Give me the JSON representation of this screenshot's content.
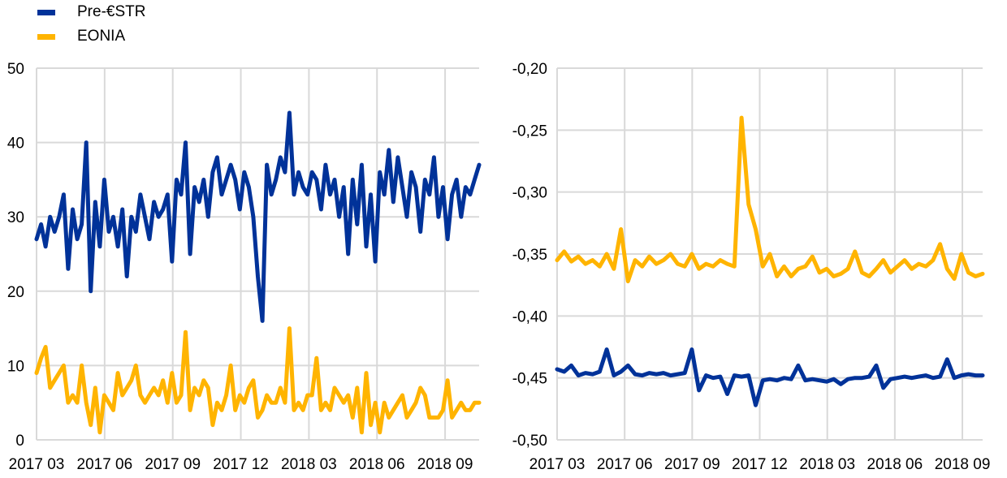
{
  "legend": [
    {
      "label": "Pre-€STR",
      "color": "#003299"
    },
    {
      "label": "EONIA",
      "color": "#FFB400"
    }
  ],
  "chart_data": [
    {
      "type": "line",
      "title": "",
      "xlabel": "",
      "ylabel": "",
      "x_unit": "months since 2017-03",
      "xlim": [
        0,
        19.5
      ],
      "ylim": [
        0,
        50
      ],
      "yticks": [
        "0",
        "10",
        "20",
        "30",
        "40",
        "50"
      ],
      "xticks": [
        {
          "label": "2017 03",
          "x": 0
        },
        {
          "label": "2017 06",
          "x": 3
        },
        {
          "label": "2017 09",
          "x": 6
        },
        {
          "label": "2017 12",
          "x": 9
        },
        {
          "label": "2018 03",
          "x": 12
        },
        {
          "label": "2018 06",
          "x": 15
        },
        {
          "label": "2018 09",
          "x": 18
        }
      ],
      "grid": true,
      "series": [
        {
          "name": "Pre-€STR",
          "color": "#003299",
          "values": [
            27,
            29,
            26,
            30,
            28,
            30,
            33,
            23,
            31,
            27,
            29,
            40,
            20,
            32,
            26,
            35,
            28,
            30,
            26,
            31,
            22,
            30,
            28,
            33,
            30,
            27,
            32,
            30,
            31,
            33,
            24,
            35,
            33,
            40,
            25,
            34,
            32,
            35,
            30,
            36,
            38,
            33,
            35,
            37,
            35,
            31,
            36,
            34,
            30,
            22,
            16,
            37,
            33,
            35,
            38,
            36,
            44,
            33,
            36,
            34,
            33,
            36,
            35,
            31,
            37,
            33,
            35,
            30,
            34,
            25,
            35,
            29,
            37,
            26,
            33,
            24,
            36,
            33,
            39,
            32,
            38,
            34,
            30,
            36,
            34,
            28,
            35,
            33,
            38,
            30,
            34,
            27,
            33,
            35,
            30,
            34,
            33,
            35,
            37
          ]
        },
        {
          "name": "EONIA",
          "color": "#FFB400",
          "values": [
            9,
            11,
            12.5,
            7,
            8,
            9,
            10,
            5,
            6,
            5,
            10,
            5,
            2,
            7,
            1,
            6,
            5,
            4,
            9,
            6,
            7,
            8,
            10,
            6,
            5,
            6,
            7,
            6,
            8,
            5,
            9,
            5,
            6,
            14.5,
            4,
            7,
            6,
            8,
            7,
            2,
            5,
            4,
            6,
            10,
            4,
            6,
            5,
            7,
            8,
            3,
            4,
            6,
            5,
            5,
            7,
            5,
            15,
            4,
            5,
            4,
            6,
            6,
            11,
            4,
            5,
            4,
            7,
            6,
            5,
            6,
            3,
            7,
            1,
            9,
            2,
            5,
            1,
            5,
            3,
            4,
            5,
            6,
            3,
            4,
            5,
            7,
            6,
            3,
            3,
            3,
            4,
            8,
            3,
            4,
            5,
            4,
            4,
            5,
            5
          ]
        }
      ]
    },
    {
      "type": "line",
      "title": "",
      "xlabel": "",
      "ylabel": "",
      "x_unit": "months since 2017-03",
      "xlim": [
        0,
        18.9
      ],
      "ylim": [
        -0.5,
        -0.2
      ],
      "yticks": [
        "-0,50",
        "-0,45",
        "-0,40",
        "-0,35",
        "-0,30",
        "-0,25",
        "-0,20"
      ],
      "xticks": [
        {
          "label": "2017 03",
          "x": 0
        },
        {
          "label": "2017 06",
          "x": 3
        },
        {
          "label": "2017 09",
          "x": 6
        },
        {
          "label": "2017 12",
          "x": 9
        },
        {
          "label": "2018 03",
          "x": 12
        },
        {
          "label": "2018 06",
          "x": 15
        },
        {
          "label": "2018 09",
          "x": 18
        }
      ],
      "grid": true,
      "series": [
        {
          "name": "EONIA",
          "color": "#FFB400",
          "values": [
            -0.355,
            -0.348,
            -0.356,
            -0.352,
            -0.358,
            -0.355,
            -0.36,
            -0.35,
            -0.362,
            -0.33,
            -0.372,
            -0.355,
            -0.36,
            -0.352,
            -0.358,
            -0.355,
            -0.35,
            -0.358,
            -0.36,
            -0.35,
            -0.362,
            -0.358,
            -0.36,
            -0.355,
            -0.358,
            -0.36,
            -0.24,
            -0.31,
            -0.33,
            -0.36,
            -0.35,
            -0.368,
            -0.36,
            -0.368,
            -0.362,
            -0.36,
            -0.352,
            -0.365,
            -0.362,
            -0.368,
            -0.366,
            -0.362,
            -0.348,
            -0.365,
            -0.368,
            -0.362,
            -0.355,
            -0.365,
            -0.36,
            -0.355,
            -0.362,
            -0.358,
            -0.36,
            -0.355,
            -0.342,
            -0.362,
            -0.37,
            -0.35,
            -0.365,
            -0.368,
            -0.366
          ]
        },
        {
          "name": "Pre-€STR",
          "color": "#003299",
          "values": [
            -0.443,
            -0.445,
            -0.44,
            -0.448,
            -0.446,
            -0.447,
            -0.445,
            -0.427,
            -0.448,
            -0.445,
            -0.44,
            -0.447,
            -0.448,
            -0.446,
            -0.447,
            -0.446,
            -0.448,
            -0.447,
            -0.446,
            -0.427,
            -0.46,
            -0.448,
            -0.45,
            -0.449,
            -0.463,
            -0.448,
            -0.449,
            -0.448,
            -0.472,
            -0.452,
            -0.451,
            -0.452,
            -0.45,
            -0.451,
            -0.44,
            -0.452,
            -0.451,
            -0.452,
            -0.453,
            -0.451,
            -0.455,
            -0.451,
            -0.45,
            -0.45,
            -0.449,
            -0.44,
            -0.458,
            -0.451,
            -0.45,
            -0.449,
            -0.45,
            -0.449,
            -0.448,
            -0.45,
            -0.449,
            -0.435,
            -0.45,
            -0.448,
            -0.447,
            -0.448,
            -0.448
          ]
        }
      ]
    }
  ]
}
